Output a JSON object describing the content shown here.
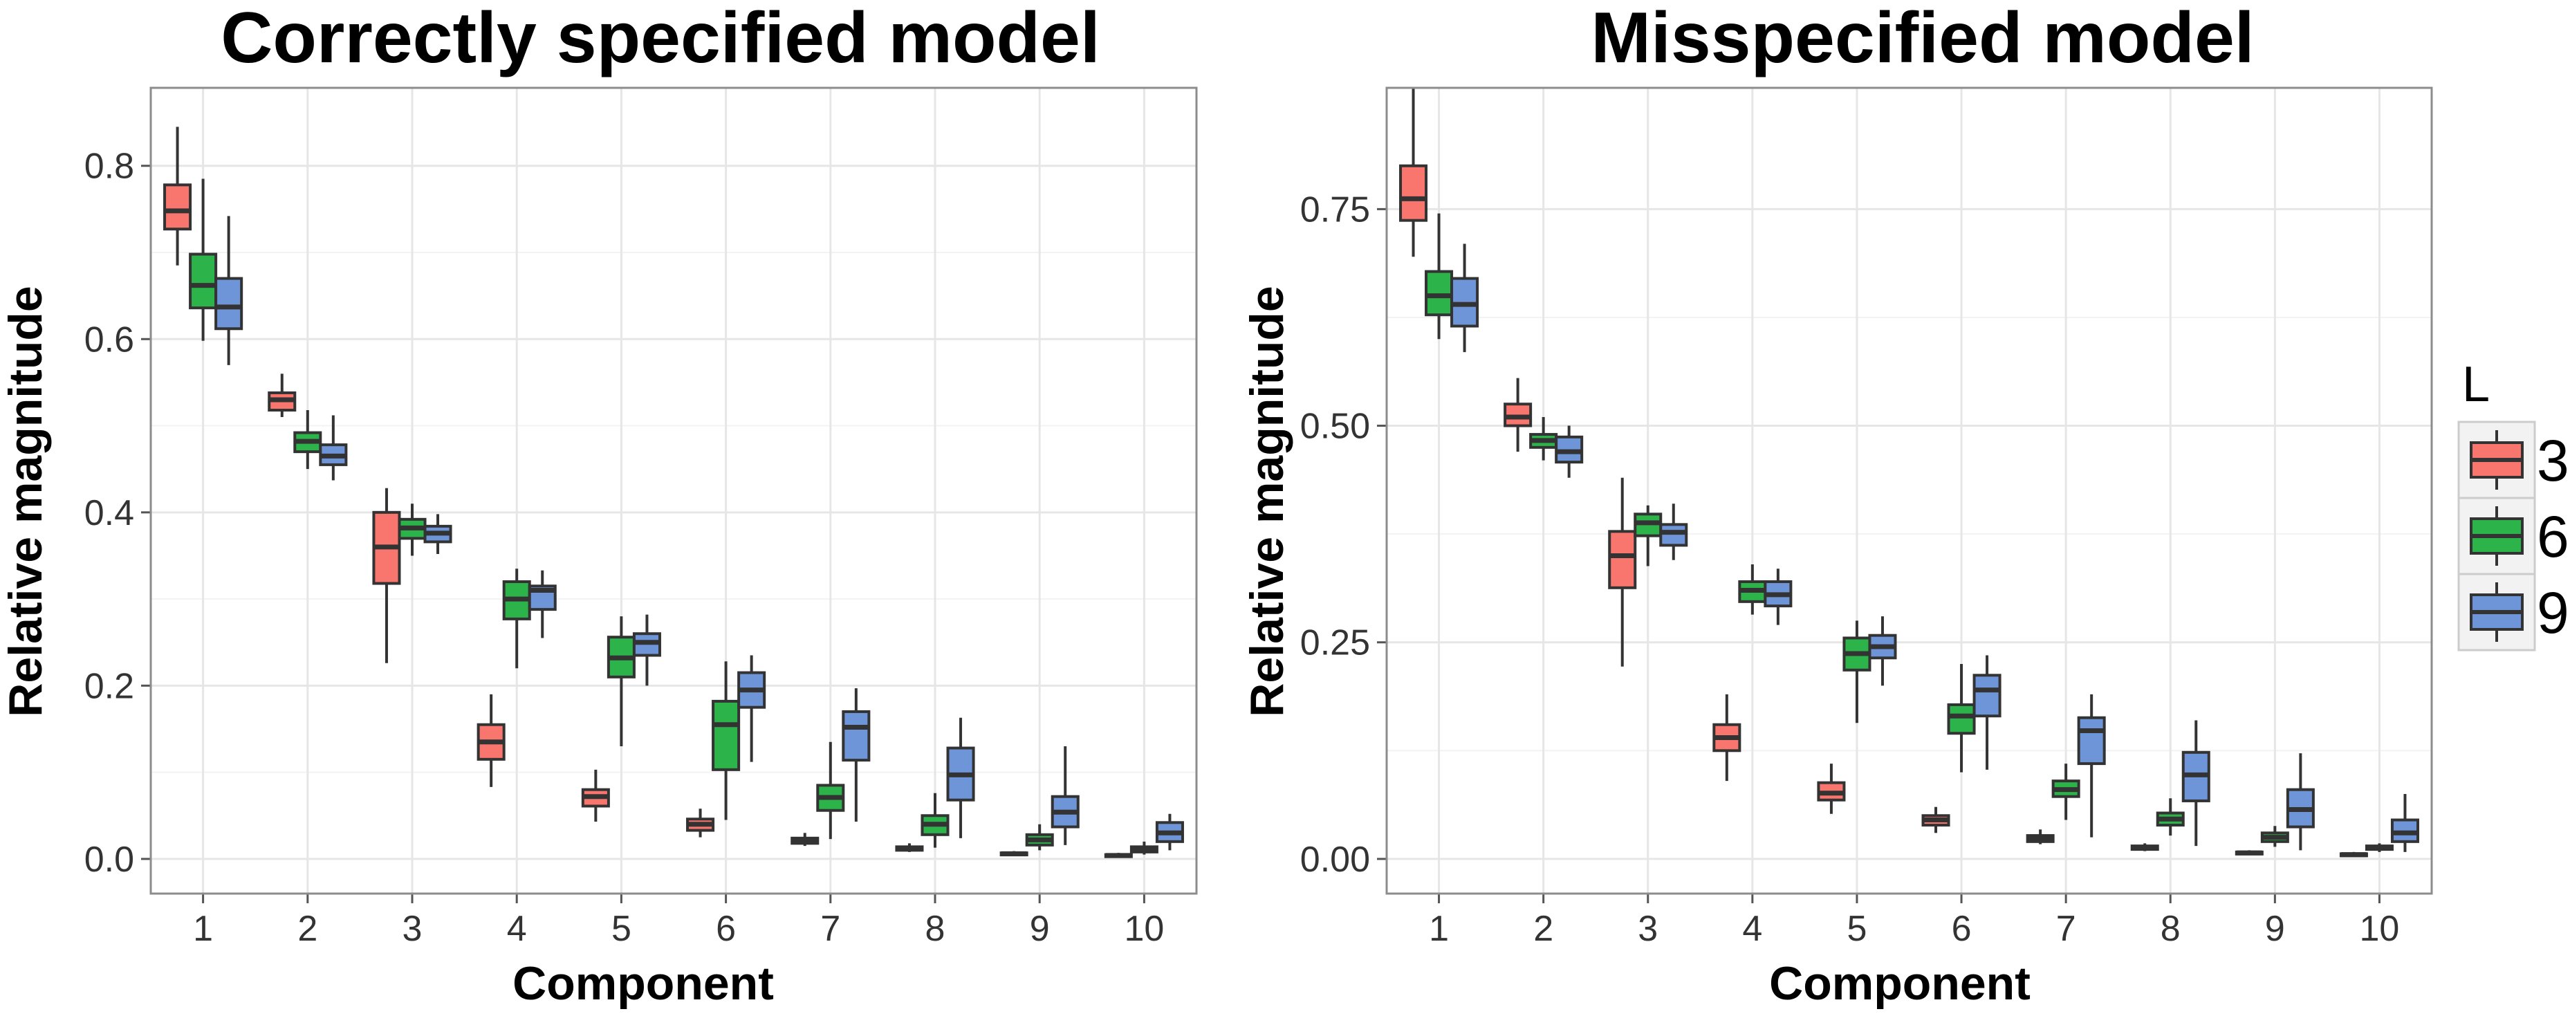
{
  "colors": {
    "L3": "#F8766D",
    "L6": "#2CB34A",
    "L9": "#6F95D9"
  },
  "legend": {
    "title": "L",
    "items": [
      {
        "label": "3",
        "color": "#F8766D"
      },
      {
        "label": "6",
        "color": "#2CB34A"
      },
      {
        "label": "9",
        "color": "#6F95D9"
      }
    ]
  },
  "chart_data": [
    {
      "type": "boxplot",
      "title": "Correctly specified model",
      "xlabel": "Component",
      "ylabel": "Relative magnitude",
      "categories": [
        "1",
        "2",
        "3",
        "4",
        "5",
        "6",
        "7",
        "8",
        "9",
        "10"
      ],
      "ylim": [
        -0.04,
        0.89
      ],
      "yticks": [
        0.0,
        0.2,
        0.4,
        0.6,
        0.8
      ],
      "ytick_labels": [
        "0.0",
        "0.2",
        "0.4",
        "0.6",
        "0.8"
      ],
      "grid": true,
      "series": [
        {
          "name": "3",
          "boxes": [
            [
              0.685,
              0.727,
              0.748,
              0.778,
              0.845
            ],
            [
              0.51,
              0.518,
              0.53,
              0.538,
              0.56
            ],
            [
              0.226,
              0.318,
              0.36,
              0.4,
              0.428
            ],
            [
              0.083,
              0.115,
              0.135,
              0.155,
              0.19
            ],
            [
              0.043,
              0.061,
              0.072,
              0.08,
              0.103
            ],
            [
              0.025,
              0.033,
              0.04,
              0.046,
              0.058
            ],
            [
              0.015,
              0.018,
              0.021,
              0.024,
              0.03
            ],
            [
              0.008,
              0.01,
              0.012,
              0.014,
              0.018
            ],
            [
              0.004,
              0.005,
              0.006,
              0.007,
              0.009
            ],
            [
              0.002,
              0.003,
              0.004,
              0.005,
              0.007
            ]
          ]
        },
        {
          "name": "6",
          "boxes": [
            [
              0.598,
              0.636,
              0.662,
              0.698,
              0.785
            ],
            [
              0.45,
              0.47,
              0.482,
              0.492,
              0.518
            ],
            [
              0.35,
              0.37,
              0.382,
              0.392,
              0.41
            ],
            [
              0.22,
              0.277,
              0.3,
              0.32,
              0.335
            ],
            [
              0.13,
              0.21,
              0.232,
              0.256,
              0.28
            ],
            [
              0.045,
              0.103,
              0.155,
              0.182,
              0.228
            ],
            [
              0.023,
              0.056,
              0.071,
              0.085,
              0.135
            ],
            [
              0.013,
              0.028,
              0.04,
              0.05,
              0.076
            ],
            [
              0.01,
              0.016,
              0.022,
              0.028,
              0.04
            ],
            [
              0.005,
              0.008,
              0.011,
              0.014,
              0.02
            ]
          ]
        },
        {
          "name": "9",
          "boxes": [
            [
              0.57,
              0.612,
              0.637,
              0.67,
              0.742
            ],
            [
              0.437,
              0.455,
              0.465,
              0.478,
              0.512
            ],
            [
              0.352,
              0.366,
              0.376,
              0.384,
              0.398
            ],
            [
              0.255,
              0.288,
              0.31,
              0.315,
              0.333
            ],
            [
              0.2,
              0.235,
              0.25,
              0.26,
              0.282
            ],
            [
              0.112,
              0.175,
              0.195,
              0.215,
              0.235
            ],
            [
              0.043,
              0.114,
              0.152,
              0.17,
              0.197
            ],
            [
              0.024,
              0.068,
              0.097,
              0.128,
              0.163
            ],
            [
              0.016,
              0.037,
              0.054,
              0.072,
              0.13
            ],
            [
              0.01,
              0.02,
              0.03,
              0.042,
              0.052
            ]
          ]
        }
      ]
    },
    {
      "type": "boxplot",
      "title": "Misspecified model",
      "xlabel": "Component",
      "ylabel": "Relative magnitude",
      "categories": [
        "1",
        "2",
        "3",
        "4",
        "5",
        "6",
        "7",
        "8",
        "9",
        "10"
      ],
      "ylim": [
        -0.04,
        0.89
      ],
      "yticks": [
        0.0,
        0.25,
        0.5,
        0.75
      ],
      "ytick_labels": [
        "0.00",
        "0.25",
        "0.50",
        "0.75"
      ],
      "grid": true,
      "series": [
        {
          "name": "3",
          "boxes": [
            [
              0.695,
              0.737,
              0.762,
              0.8,
              0.89
            ],
            [
              0.47,
              0.5,
              0.51,
              0.525,
              0.555
            ],
            [
              0.222,
              0.313,
              0.35,
              0.378,
              0.44
            ],
            [
              0.09,
              0.125,
              0.14,
              0.155,
              0.19
            ],
            [
              0.052,
              0.068,
              0.076,
              0.088,
              0.11
            ],
            [
              0.03,
              0.039,
              0.045,
              0.05,
              0.06
            ],
            [
              0.017,
              0.02,
              0.024,
              0.027,
              0.034
            ],
            [
              0.009,
              0.011,
              0.013,
              0.015,
              0.018
            ],
            [
              0.005,
              0.006,
              0.007,
              0.008,
              0.01
            ],
            [
              0.003,
              0.004,
              0.005,
              0.006,
              0.008
            ]
          ]
        },
        {
          "name": "6",
          "boxes": [
            [
              0.6,
              0.628,
              0.65,
              0.678,
              0.745
            ],
            [
              0.46,
              0.475,
              0.483,
              0.49,
              0.51
            ],
            [
              0.338,
              0.373,
              0.388,
              0.398,
              0.408
            ],
            [
              0.282,
              0.297,
              0.31,
              0.32,
              0.34
            ],
            [
              0.157,
              0.218,
              0.237,
              0.255,
              0.275
            ],
            [
              0.1,
              0.145,
              0.165,
              0.178,
              0.225
            ],
            [
              0.045,
              0.072,
              0.08,
              0.09,
              0.11
            ],
            [
              0.027,
              0.039,
              0.046,
              0.053,
              0.07
            ],
            [
              0.014,
              0.02,
              0.025,
              0.03,
              0.038
            ],
            [
              0.008,
              0.011,
              0.013,
              0.015,
              0.018
            ]
          ]
        },
        {
          "name": "9",
          "boxes": [
            [
              0.585,
              0.615,
              0.64,
              0.67,
              0.71
            ],
            [
              0.44,
              0.458,
              0.47,
              0.487,
              0.5
            ],
            [
              0.345,
              0.362,
              0.377,
              0.386,
              0.41
            ],
            [
              0.27,
              0.292,
              0.305,
              0.32,
              0.335
            ],
            [
              0.2,
              0.232,
              0.245,
              0.258,
              0.28
            ],
            [
              0.103,
              0.165,
              0.195,
              0.212,
              0.235
            ],
            [
              0.025,
              0.11,
              0.148,
              0.163,
              0.19
            ],
            [
              0.015,
              0.067,
              0.097,
              0.123,
              0.16
            ],
            [
              0.01,
              0.037,
              0.057,
              0.08,
              0.122
            ],
            [
              0.008,
              0.02,
              0.03,
              0.045,
              0.075
            ]
          ]
        }
      ]
    }
  ]
}
